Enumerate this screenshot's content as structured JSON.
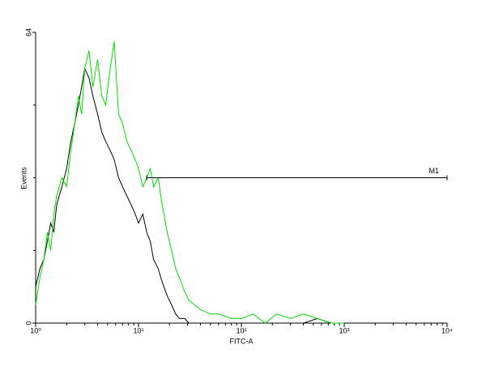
{
  "chart_data": {
    "type": "line",
    "x_label": "FITC-A",
    "y_label": "Events",
    "xscale": "log",
    "xlim": [
      1,
      10000
    ],
    "ylim": [
      0,
      64
    ],
    "xticks": [
      {
        "value": 1,
        "label": "10⁰"
      },
      {
        "value": 10,
        "label": "10¹"
      },
      {
        "value": 100,
        "label": "10²"
      },
      {
        "value": 1000,
        "label": "10³"
      },
      {
        "value": 10000,
        "label": "10⁴"
      }
    ],
    "yticks": [
      0,
      64
    ],
    "y_minor_ticks": [
      16,
      32,
      48
    ],
    "x_minor_ticks": true,
    "x": [
      1,
      1.1,
      1.2,
      1.3,
      1.4,
      1.5,
      1.6,
      1.8,
      2.0,
      2.2,
      2.4,
      2.6,
      2.8,
      3.0,
      3.3,
      3.6,
      4.0,
      4.4,
      4.8,
      5.3,
      5.8,
      6.4,
      7,
      7.7,
      8.5,
      9.3,
      10,
      11,
      12,
      13,
      14,
      15.5,
      17,
      19,
      21,
      23,
      25,
      28,
      31,
      35,
      40,
      50,
      60,
      80,
      100,
      130,
      170,
      220,
      300,
      400,
      550,
      750,
      1000
    ],
    "series": [
      {
        "color": "#000000",
        "values": [
          8,
          12,
          14,
          18,
          22,
          20,
          26,
          30,
          34,
          40,
          44,
          48,
          52,
          56,
          54,
          50,
          46,
          42,
          40,
          38,
          36,
          32,
          30,
          28,
          26,
          24,
          22,
          24,
          20,
          18,
          14,
          12,
          9,
          6,
          4,
          2,
          1,
          1,
          0,
          0,
          0,
          0,
          0,
          0,
          0,
          0,
          0,
          0,
          0,
          0,
          1,
          0,
          0
        ]
      },
      {
        "color": "#00e000",
        "values": [
          4,
          10,
          14,
          20,
          16,
          24,
          28,
          32,
          30,
          38,
          44,
          50,
          46,
          56,
          60,
          52,
          58,
          50,
          48,
          56,
          62,
          46,
          44,
          40,
          38,
          36,
          34,
          30,
          32,
          34,
          30,
          32,
          26,
          20,
          16,
          12,
          10,
          7,
          5,
          4,
          3,
          2,
          2,
          1,
          1,
          2,
          0,
          2,
          1,
          2,
          1,
          0,
          0
        ]
      }
    ],
    "marker": {
      "label": "M1",
      "range": [
        12,
        10000
      ],
      "y": 32
    }
  }
}
